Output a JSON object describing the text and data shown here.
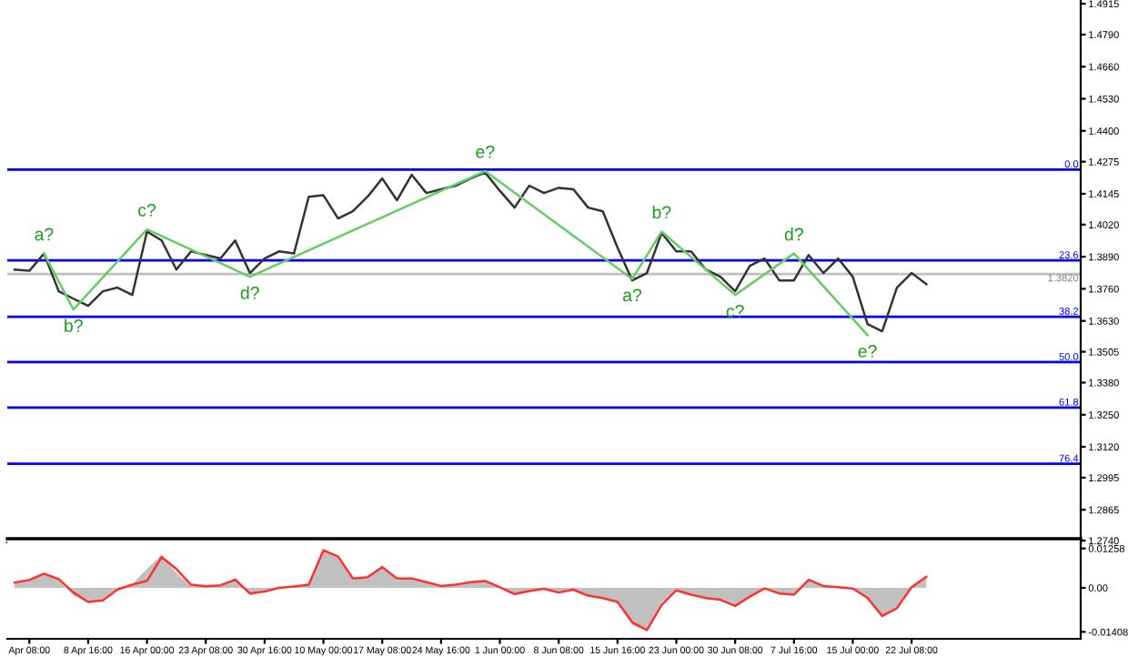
{
  "chart_data": [
    {
      "type": "line",
      "tick_labels": "y",
      "categories": [
        null,
        null,
        null,
        null,
        null,
        null,
        null,
        null,
        null,
        null,
        null,
        null,
        null,
        null,
        null,
        null,
        null,
        null,
        null,
        null,
        null,
        null,
        null,
        null,
        null,
        null,
        null,
        null,
        null,
        null,
        null,
        null,
        null,
        null,
        null,
        null,
        null,
        null,
        null,
        null,
        null,
        null,
        null,
        null,
        null,
        null,
        null,
        null,
        null,
        null,
        null,
        null,
        null,
        null,
        null,
        null,
        null,
        null,
        null,
        null,
        null,
        null,
        null,
        null,
        null,
        null,
        null,
        null,
        null,
        null,
        null,
        null,
        null
      ],
      "ylim": [
        1.2733,
        1.493
      ],
      "yticks": [
        1.4915,
        {
          "value": 1.479,
          "label": "1.4790"
        },
        {
          "value": 1.466,
          "label": "1.4660"
        },
        {
          "value": 1.453,
          "label": "1.4530"
        },
        {
          "value": 1.44,
          "label": "1.4400"
        },
        1.4275,
        1.4145,
        {
          "value": 1.402,
          "label": "1.4020"
        },
        {
          "value": 1.389,
          "label": "1.3890"
        },
        {
          "value": 1.376,
          "label": "1.3760"
        },
        {
          "value": 1.363,
          "label": "1.3630"
        },
        1.3505,
        {
          "value": 1.338,
          "label": "1.3380"
        },
        {
          "value": 1.325,
          "label": "1.3250"
        },
        {
          "value": 1.312,
          "label": "1.3120"
        },
        1.2995,
        1.2865,
        {
          "value": 1.274,
          "label": "1.2740"
        }
      ],
      "series": [
        {
          "color": "#333333",
          "values": [
            1.3838,
            1.3833,
            1.3903,
            1.375,
            1.372,
            1.3691,
            1.375,
            1.3765,
            1.3735,
            1.3992,
            1.3956,
            1.3838,
            1.3912,
            1.3897,
            1.3883,
            1.3956,
            1.3824,
            1.3883,
            1.3912,
            1.3903,
            1.4133,
            1.4139,
            1.4045,
            1.4074,
            1.4133,
            1.4207,
            1.4119,
            1.4222,
            1.4148,
            1.4163,
            1.4178,
            1.4207,
            1.4231,
            1.4157,
            1.4089,
            1.4178,
            1.4148,
            1.4169,
            1.4163,
            1.4089,
            1.4074,
            1.3927,
            1.3794,
            1.3824,
            1.3986,
            1.3912,
            1.3912,
            1.3838,
            1.3809,
            1.375,
            1.3853,
            1.3883,
            1.3794,
            1.3794,
            1.3897,
            1.3824,
            1.3883,
            1.3809,
            1.3617,
            1.3588,
            1.3765,
            1.3824,
            1.3779,
            null,
            null,
            null,
            null,
            null,
            null,
            null,
            null,
            null,
            null
          ]
        },
        {
          "color": "#66cc66",
          "values": [
            null,
            null,
            1.3903,
            null,
            1.3676,
            null,
            null,
            null,
            null,
            1.4001,
            null,
            null,
            null,
            null,
            null,
            null,
            1.3809,
            null,
            null,
            null,
            null,
            null,
            null,
            null,
            null,
            null,
            null,
            null,
            null,
            null,
            null,
            null,
            1.4237,
            null,
            null,
            null,
            null,
            null,
            null,
            null,
            null,
            null,
            1.38,
            null,
            1.3992,
            null,
            null,
            null,
            null,
            1.3735,
            null,
            null,
            null,
            1.3903,
            null,
            null,
            null,
            null,
            1.3573,
            null,
            null,
            null,
            null,
            null,
            null,
            null,
            null,
            null,
            null,
            null,
            null,
            null,
            null
          ]
        }
      ],
      "ref_lines": [
        {
          "axis": "y",
          "value": 1.4243,
          "color": "#0000ff"
        },
        {
          "axis": "y",
          "value": 1.3875,
          "color": "#0000ff"
        },
        {
          "axis": "y",
          "value": 1.3647,
          "color": "#0000ff"
        },
        {
          "axis": "y",
          "value": 1.3463,
          "color": "#0000ff"
        },
        {
          "axis": "y",
          "value": 1.3279,
          "color": "#0000ff"
        },
        {
          "axis": "y",
          "value": 1.3051,
          "color": "#0000ff"
        },
        {
          "axis": "y",
          "value": 1.382,
          "label": "1.3820",
          "color": "#c0c0c0"
        }
      ],
      "annotations": [
        "a?",
        "b?",
        "c?",
        "d?",
        "e?",
        "a?",
        "b?",
        "c?",
        "d?",
        "e?",
        {
          "text": "0.0",
          "y": 1.4243
        },
        {
          "text": "23.6",
          "y": 1.3875
        },
        {
          "text": "38.2",
          "y": 1.3647
        },
        {
          "text": "50.0",
          "y": 1.3463
        },
        {
          "text": "61.8",
          "y": 1.3279
        },
        {
          "text": "76.4",
          "y": 1.3051
        }
      ]
    },
    {
      "type": "area",
      "categories": [
        null,
        "Apr 08:00",
        null,
        null,
        null,
        "8 Apr 16:00",
        null,
        null,
        null,
        "16 Apr 00:00",
        null,
        null,
        null,
        "23 Apr 08:00",
        null,
        null,
        null,
        "30 Apr 16:00",
        null,
        null,
        null,
        "10 May 00:00",
        null,
        null,
        null,
        "17 May 08:00",
        null,
        null,
        null,
        "24 May 16:00",
        null,
        null,
        null,
        "1 Jun 00:00",
        null,
        null,
        null,
        "8 Jun 08:00",
        null,
        null,
        null,
        "15 Jun 16:00",
        null,
        null,
        null,
        "23 Jun 00:00",
        null,
        null,
        null,
        "30 Jun 08:00",
        null,
        null,
        null,
        "7 Jul 16:00",
        null,
        null,
        null,
        "15 Jul 00:00",
        null,
        null,
        null,
        "22 Jul 08:00",
        null,
        null,
        null,
        null,
        null,
        null,
        null,
        null,
        null,
        null,
        null
      ],
      "ylim": [
        -0.0163,
        0.0157
      ],
      "yticks": [
        0.01258,
        {
          "value": 0,
          "label": "0.00"
        },
        -0.01408
      ],
      "series": [
        {
          "color": "#c0c0c0",
          "values": [
            0.0019,
            0.0028,
            0.0047,
            0.0024,
            -0.0024,
            -0.0047,
            -0.0036,
            0,
            0.0012,
            0.006,
            0.0107,
            0.0047,
            0.0005,
            0.0006,
            0.0007,
            0.0028,
            -0.0024,
            -0.0012,
            0,
            0.0005,
            0.0012,
            0.0126,
            0.0095,
            0.0024,
            0.0036,
            0.0071,
            0.0024,
            0.0033,
            0.0017,
            0.0005,
            0.001,
            0.0019,
            0.0024,
            0,
            -0.0024,
            -0.0008,
            0,
            -0.0017,
            -0.0005,
            -0.0028,
            -0.0035,
            -0.0047,
            -0.0119,
            -0.0137,
            -0.0047,
            -0.0005,
            -0.0024,
            -0.0035,
            -0.004,
            -0.0059,
            -0.0025,
            0,
            -0.0019,
            -0.0024,
            0.0028,
            0.0005,
            0.0002,
            0,
            -0.0036,
            -0.0095,
            -0.0059,
            0.0005,
            0.0036,
            null,
            null,
            null,
            null,
            null,
            null,
            null,
            null,
            null,
            null
          ]
        },
        {
          "type": "line",
          "color": "#ff3030",
          "values": [
            0.0017,
            0.0025,
            0.0045,
            0.0028,
            -0.0015,
            -0.0045,
            -0.004,
            -0.0005,
            0.001,
            0.0022,
            0.0098,
            0.006,
            0.001,
            0.0005,
            0.0008,
            0.0026,
            -0.0018,
            -0.0012,
            0,
            0.0004,
            0.001,
            0.012,
            0.01,
            0.003,
            0.0034,
            0.0066,
            0.003,
            0.003,
            0.0018,
            0.0006,
            0.001,
            0.0018,
            0.0022,
            0.0002,
            -0.002,
            -0.001,
            -0.0003,
            -0.0015,
            -0.0006,
            -0.0025,
            -0.0033,
            -0.0045,
            -0.011,
            -0.0135,
            -0.0055,
            -0.0008,
            -0.0022,
            -0.0033,
            -0.0038,
            -0.0058,
            -0.0028,
            -0.0002,
            -0.0018,
            -0.0022,
            0.0026,
            0.0006,
            0.0002,
            -0.0002,
            -0.0032,
            -0.009,
            -0.0065,
            0.0002,
            0.0035,
            null,
            null,
            null,
            null,
            null,
            null,
            null,
            null,
            null,
            null
          ]
        }
      ]
    }
  ]
}
